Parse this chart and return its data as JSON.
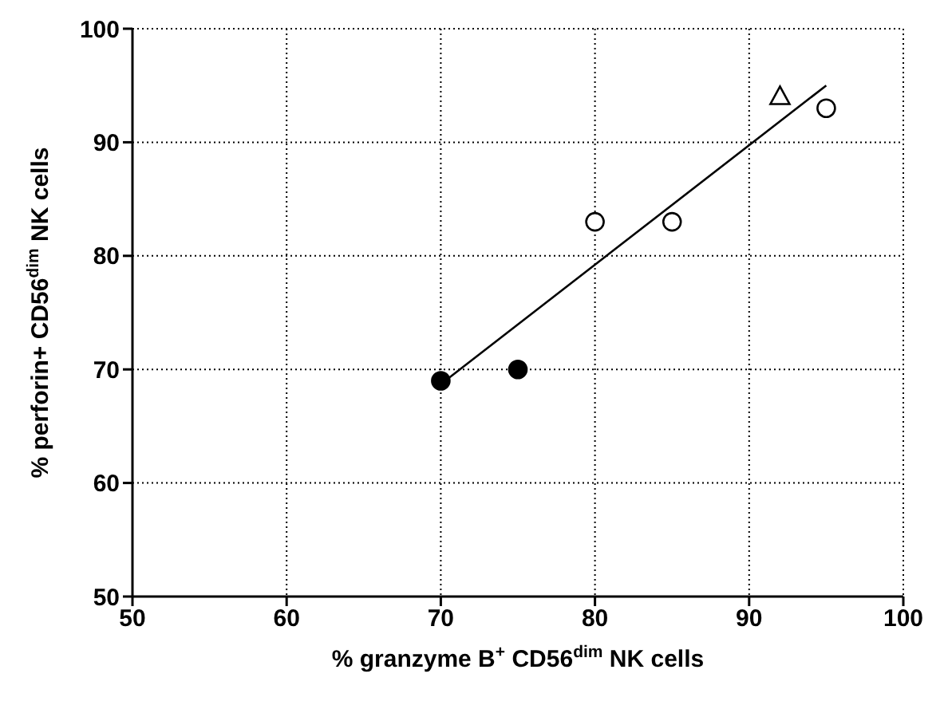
{
  "chart_data": {
    "type": "scatter",
    "xlabel": "% granzyme B$^{+}$ CD56$^{dim}$ NK cells",
    "ylabel": "% perforin+ CD56$^{dim}$ NK cells",
    "xlim": [
      50,
      100
    ],
    "ylim": [
      50,
      100
    ],
    "xticks": [
      50,
      60,
      70,
      80,
      90,
      100
    ],
    "yticks": [
      50,
      60,
      70,
      80,
      90,
      100
    ],
    "grid": true,
    "series": [
      {
        "marker": "circle",
        "color": "#000000",
        "x": [
          70,
          75
        ],
        "values": [
          69,
          70
        ]
      },
      {
        "marker": "circle",
        "color": "#ffffff",
        "x": [
          80,
          85,
          95
        ],
        "values": [
          83,
          83,
          93
        ]
      },
      {
        "marker": "triangle",
        "color": "#ffffff",
        "x": [
          92
        ],
        "values": [
          94
        ]
      },
      {
        "type": "line",
        "marker": "none",
        "color": "#000000",
        "x": [
          70,
          95
        ],
        "values": [
          68.7,
          95
        ]
      }
    ]
  }
}
